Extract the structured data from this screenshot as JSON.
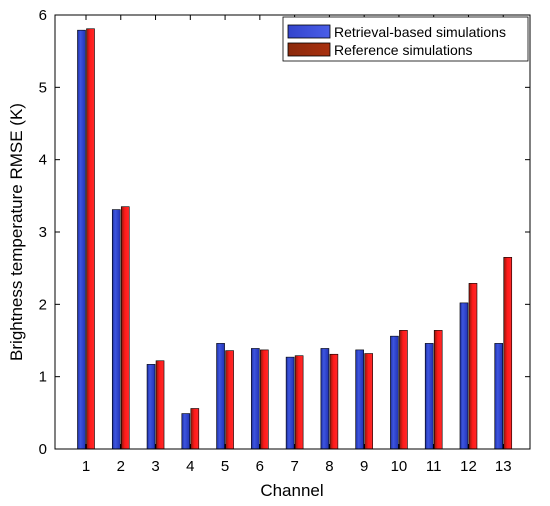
{
  "chart_data": {
    "type": "bar",
    "xlabel": "Channel",
    "ylabel": "Brightness temperature RMSE (K)",
    "ylim": [
      0,
      6
    ],
    "yticks": [
      0,
      1,
      2,
      3,
      4,
      5,
      6
    ],
    "categories": [
      "1",
      "2",
      "3",
      "4",
      "5",
      "6",
      "7",
      "8",
      "9",
      "10",
      "11",
      "12",
      "13"
    ],
    "legend_position": "top-right",
    "grid": false,
    "series": [
      {
        "name": "Retrieval-based simulations",
        "color": "#3344cc",
        "values": [
          5.79,
          3.31,
          1.17,
          0.49,
          1.46,
          1.39,
          1.27,
          1.39,
          1.37,
          1.56,
          1.46,
          2.02,
          1.46
        ]
      },
      {
        "name": "Reference simulations",
        "color": "#ff1a1a",
        "values": [
          5.81,
          3.35,
          1.22,
          0.56,
          1.36,
          1.37,
          1.29,
          1.31,
          1.32,
          1.64,
          1.64,
          2.29,
          2.65
        ]
      }
    ]
  }
}
